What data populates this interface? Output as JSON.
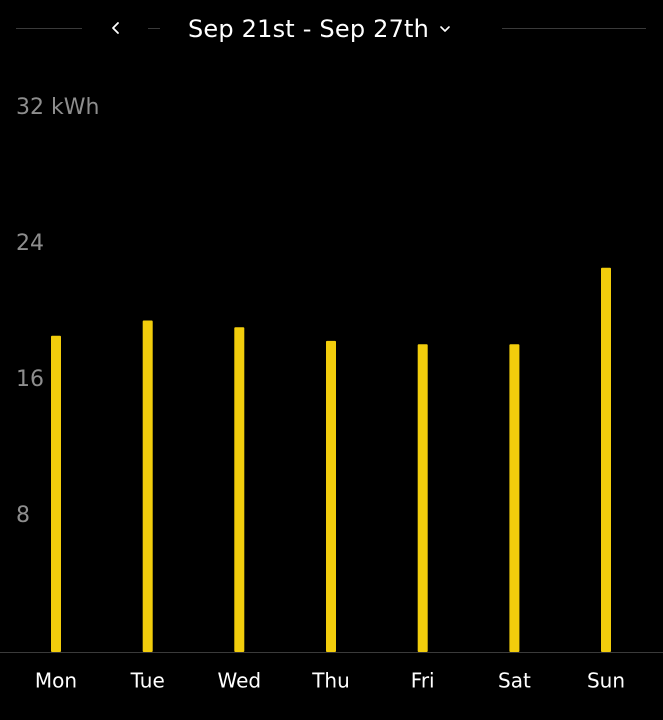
{
  "header": {
    "date_range": "Sep 21st - Sep 27th"
  },
  "colors": {
    "background": "#000000",
    "bar": "#f2cd0c",
    "axis_label": "#8e8e8e",
    "divider": "#3a3a3a"
  },
  "chart_data": {
    "type": "bar",
    "title": "",
    "xlabel": "",
    "ylabel": "",
    "unit": "kWh",
    "y_tick_labels": [
      "8",
      "16",
      "24",
      "32 kWh"
    ],
    "y_ticks": [
      8,
      16,
      24,
      32
    ],
    "ylim": [
      0,
      32
    ],
    "grid": false,
    "categories": [
      "Mon",
      "Tue",
      "Wed",
      "Thu",
      "Fri",
      "Sat",
      "Sun"
    ],
    "values": [
      18.6,
      19.5,
      19.1,
      18.3,
      18.1,
      18.1,
      22.6
    ]
  }
}
